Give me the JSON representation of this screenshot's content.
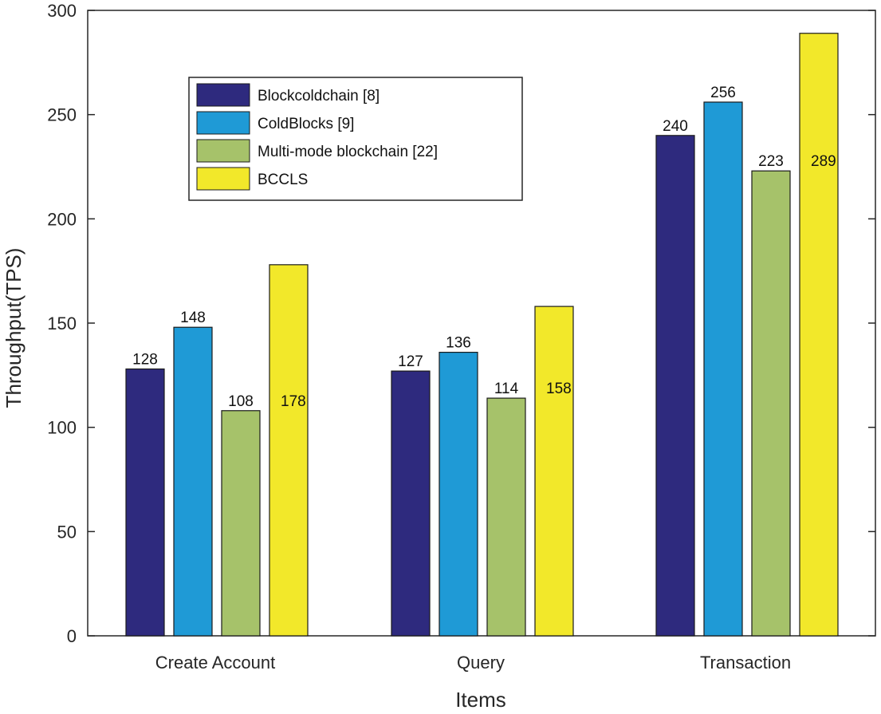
{
  "chart_data": {
    "type": "bar",
    "title": "",
    "xlabel": "Items",
    "ylabel": "Throughput(TPS)",
    "ylim": [
      0,
      300
    ],
    "yticks": [
      0,
      50,
      100,
      150,
      200,
      250,
      300
    ],
    "categories": [
      "Create Account",
      "Query",
      "Transaction"
    ],
    "series": [
      {
        "name": "Blockcoldchain [8]",
        "color": "#2e2a7e",
        "values": [
          128,
          127,
          240
        ],
        "labels": [
          "128",
          "127",
          "240"
        ]
      },
      {
        "name": "ColdBlocks [9]",
        "color": "#1f9ad6",
        "values": [
          148,
          136,
          256
        ],
        "labels": [
          "148",
          "136",
          "256"
        ]
      },
      {
        "name": "Multi-mode blockchain [22]",
        "color": "#a6c26a",
        "values": [
          108,
          114,
          223
        ],
        "labels": [
          "108",
          "114",
          "223"
        ]
      },
      {
        "name": "BCCLS",
        "color": "#f2e82a",
        "values": [
          178,
          158,
          289
        ],
        "labels": [
          "178",
          "158",
          "289"
        ]
      }
    ],
    "legend_position": "upper-left",
    "grid": false
  }
}
